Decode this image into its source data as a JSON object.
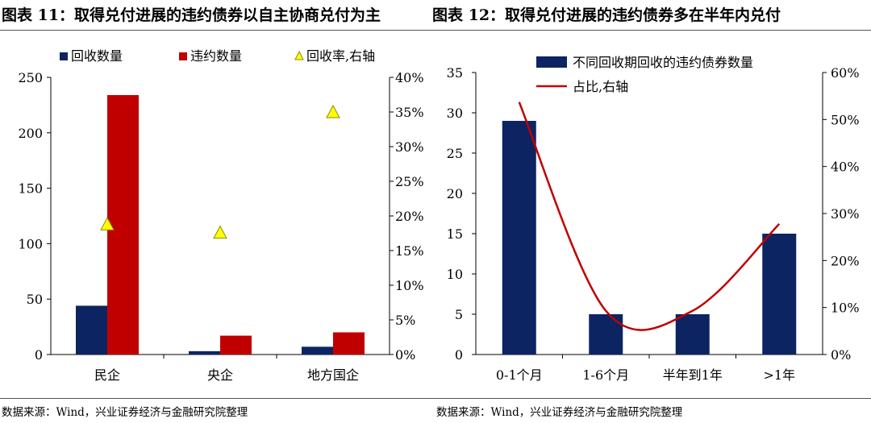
{
  "titles": {
    "left": "图表 11：取得兑付进展的违约债券以自主协商兑付为主",
    "right": "图表 12：取得兑付进展的违约债券多在半年内兑付"
  },
  "sources": {
    "left": "数据来源：Wind，兴业证券经济与金融研究院整理",
    "right": "数据来源：Wind，兴业证券经济与金融研究院整理"
  },
  "colors": {
    "navy": "#0d2462",
    "red": "#c00000",
    "marker": "#ffff00",
    "marker_edge": "#8c8c00"
  },
  "chart_data": [
    {
      "type": "bar",
      "title": "",
      "categories": [
        "民企",
        "央企",
        "地方国企"
      ],
      "series": [
        {
          "name": "回收数量",
          "values": [
            44,
            3,
            7
          ]
        },
        {
          "name": "违约数量",
          "values": [
            234,
            17,
            20
          ]
        }
      ],
      "secondary_series": {
        "name": "回收率,右轴",
        "type": "scatter",
        "marker": "triangle",
        "values": [
          18.8,
          17.6,
          35.0
        ]
      },
      "ylim": [
        0,
        250
      ],
      "yticks": [
        "0",
        "50",
        "100",
        "150",
        "200",
        "250"
      ],
      "y2lim": [
        0,
        40
      ],
      "y2ticks": [
        "0%",
        "5%",
        "10%",
        "15%",
        "20%",
        "25%",
        "30%",
        "35%",
        "40%"
      ],
      "legend": [
        "回收数量",
        "违约数量",
        "回收率,右轴"
      ],
      "legend_position": "top",
      "grid": false
    },
    {
      "type": "bar",
      "title": "",
      "categories": [
        "0-1个月",
        "1-6个月",
        "半年到1年",
        ">1年"
      ],
      "series": [
        {
          "name": "不同回收期回收的违约债券数量",
          "values": [
            29,
            5,
            5,
            15
          ]
        }
      ],
      "secondary_series": {
        "name": "占比,右轴",
        "type": "line",
        "smooth": true,
        "values": [
          53.7,
          9.3,
          9.3,
          27.8
        ]
      },
      "ylim": [
        0,
        35
      ],
      "yticks": [
        "0",
        "5",
        "10",
        "15",
        "20",
        "25",
        "30",
        "35"
      ],
      "y2lim": [
        0,
        60
      ],
      "y2ticks": [
        "0%",
        "10%",
        "20%",
        "30%",
        "40%",
        "50%",
        "60%"
      ],
      "legend": [
        "不同回收期回收的违约债券数量",
        "占比,右轴"
      ],
      "legend_position": "top",
      "grid": false
    }
  ]
}
